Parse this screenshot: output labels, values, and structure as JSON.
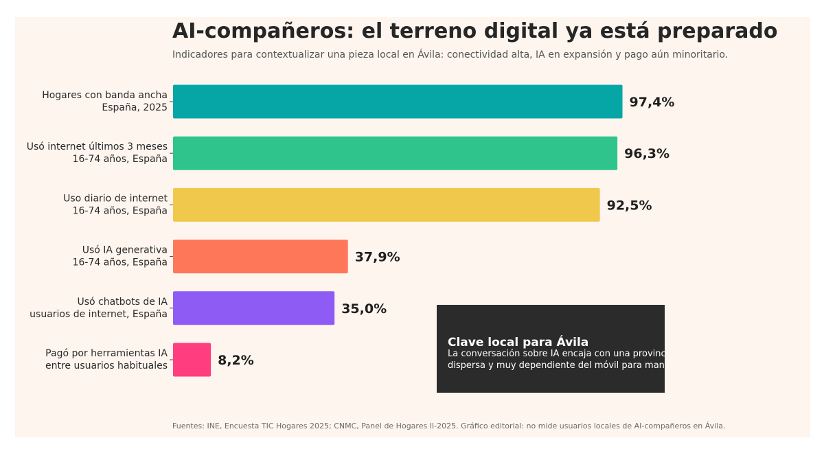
{
  "title": "AI-compañeros: el terreno digital ya está preparado",
  "subtitle": "Indicadores para contextualizar una pieza local en Ávila: conectividad alta, IA en expansión y pago aún minoritario.",
  "footer": "Fuentes: INE, Encuesta TIC Hogares 2025; CNMC, Panel de Hogares II-2025. Gráfico editorial: no mide usuarios locales de AI-compañeros en Ávila.",
  "callout": {
    "title": "Clave local para Ávila",
    "body": "La conversación sobre IA encaja con una provincia envejecida, dispersa y muy dependiente del móvil para mantener vínculos."
  },
  "chart_data": {
    "type": "bar",
    "orientation": "horizontal",
    "xlim": [
      0,
      100
    ],
    "grid": false,
    "categories": [
      [
        "Hogares con banda ancha",
        "España, 2025"
      ],
      [
        "Usó internet últimos 3 meses",
        "16-74 años, España"
      ],
      [
        "Uso diario de internet",
        "16-74 años, España"
      ],
      [
        "Usó IA generativa",
        "16-74 años, España"
      ],
      [
        "Usó chatbots de IA",
        "usuarios de internet, España"
      ],
      [
        "Pagó por herramientas IA",
        "entre usuarios habituales"
      ]
    ],
    "values": [
      97.4,
      96.3,
      92.5,
      37.9,
      35.0,
      8.2
    ],
    "value_labels": [
      "97,4%",
      "96,3%",
      "92,5%",
      "37,9%",
      "35,0%",
      "8,2%"
    ],
    "colors": [
      "#06a6a6",
      "#2ec48c",
      "#f0c84b",
      "#ff7759",
      "#8e5cf5",
      "#ff3d7f"
    ]
  }
}
